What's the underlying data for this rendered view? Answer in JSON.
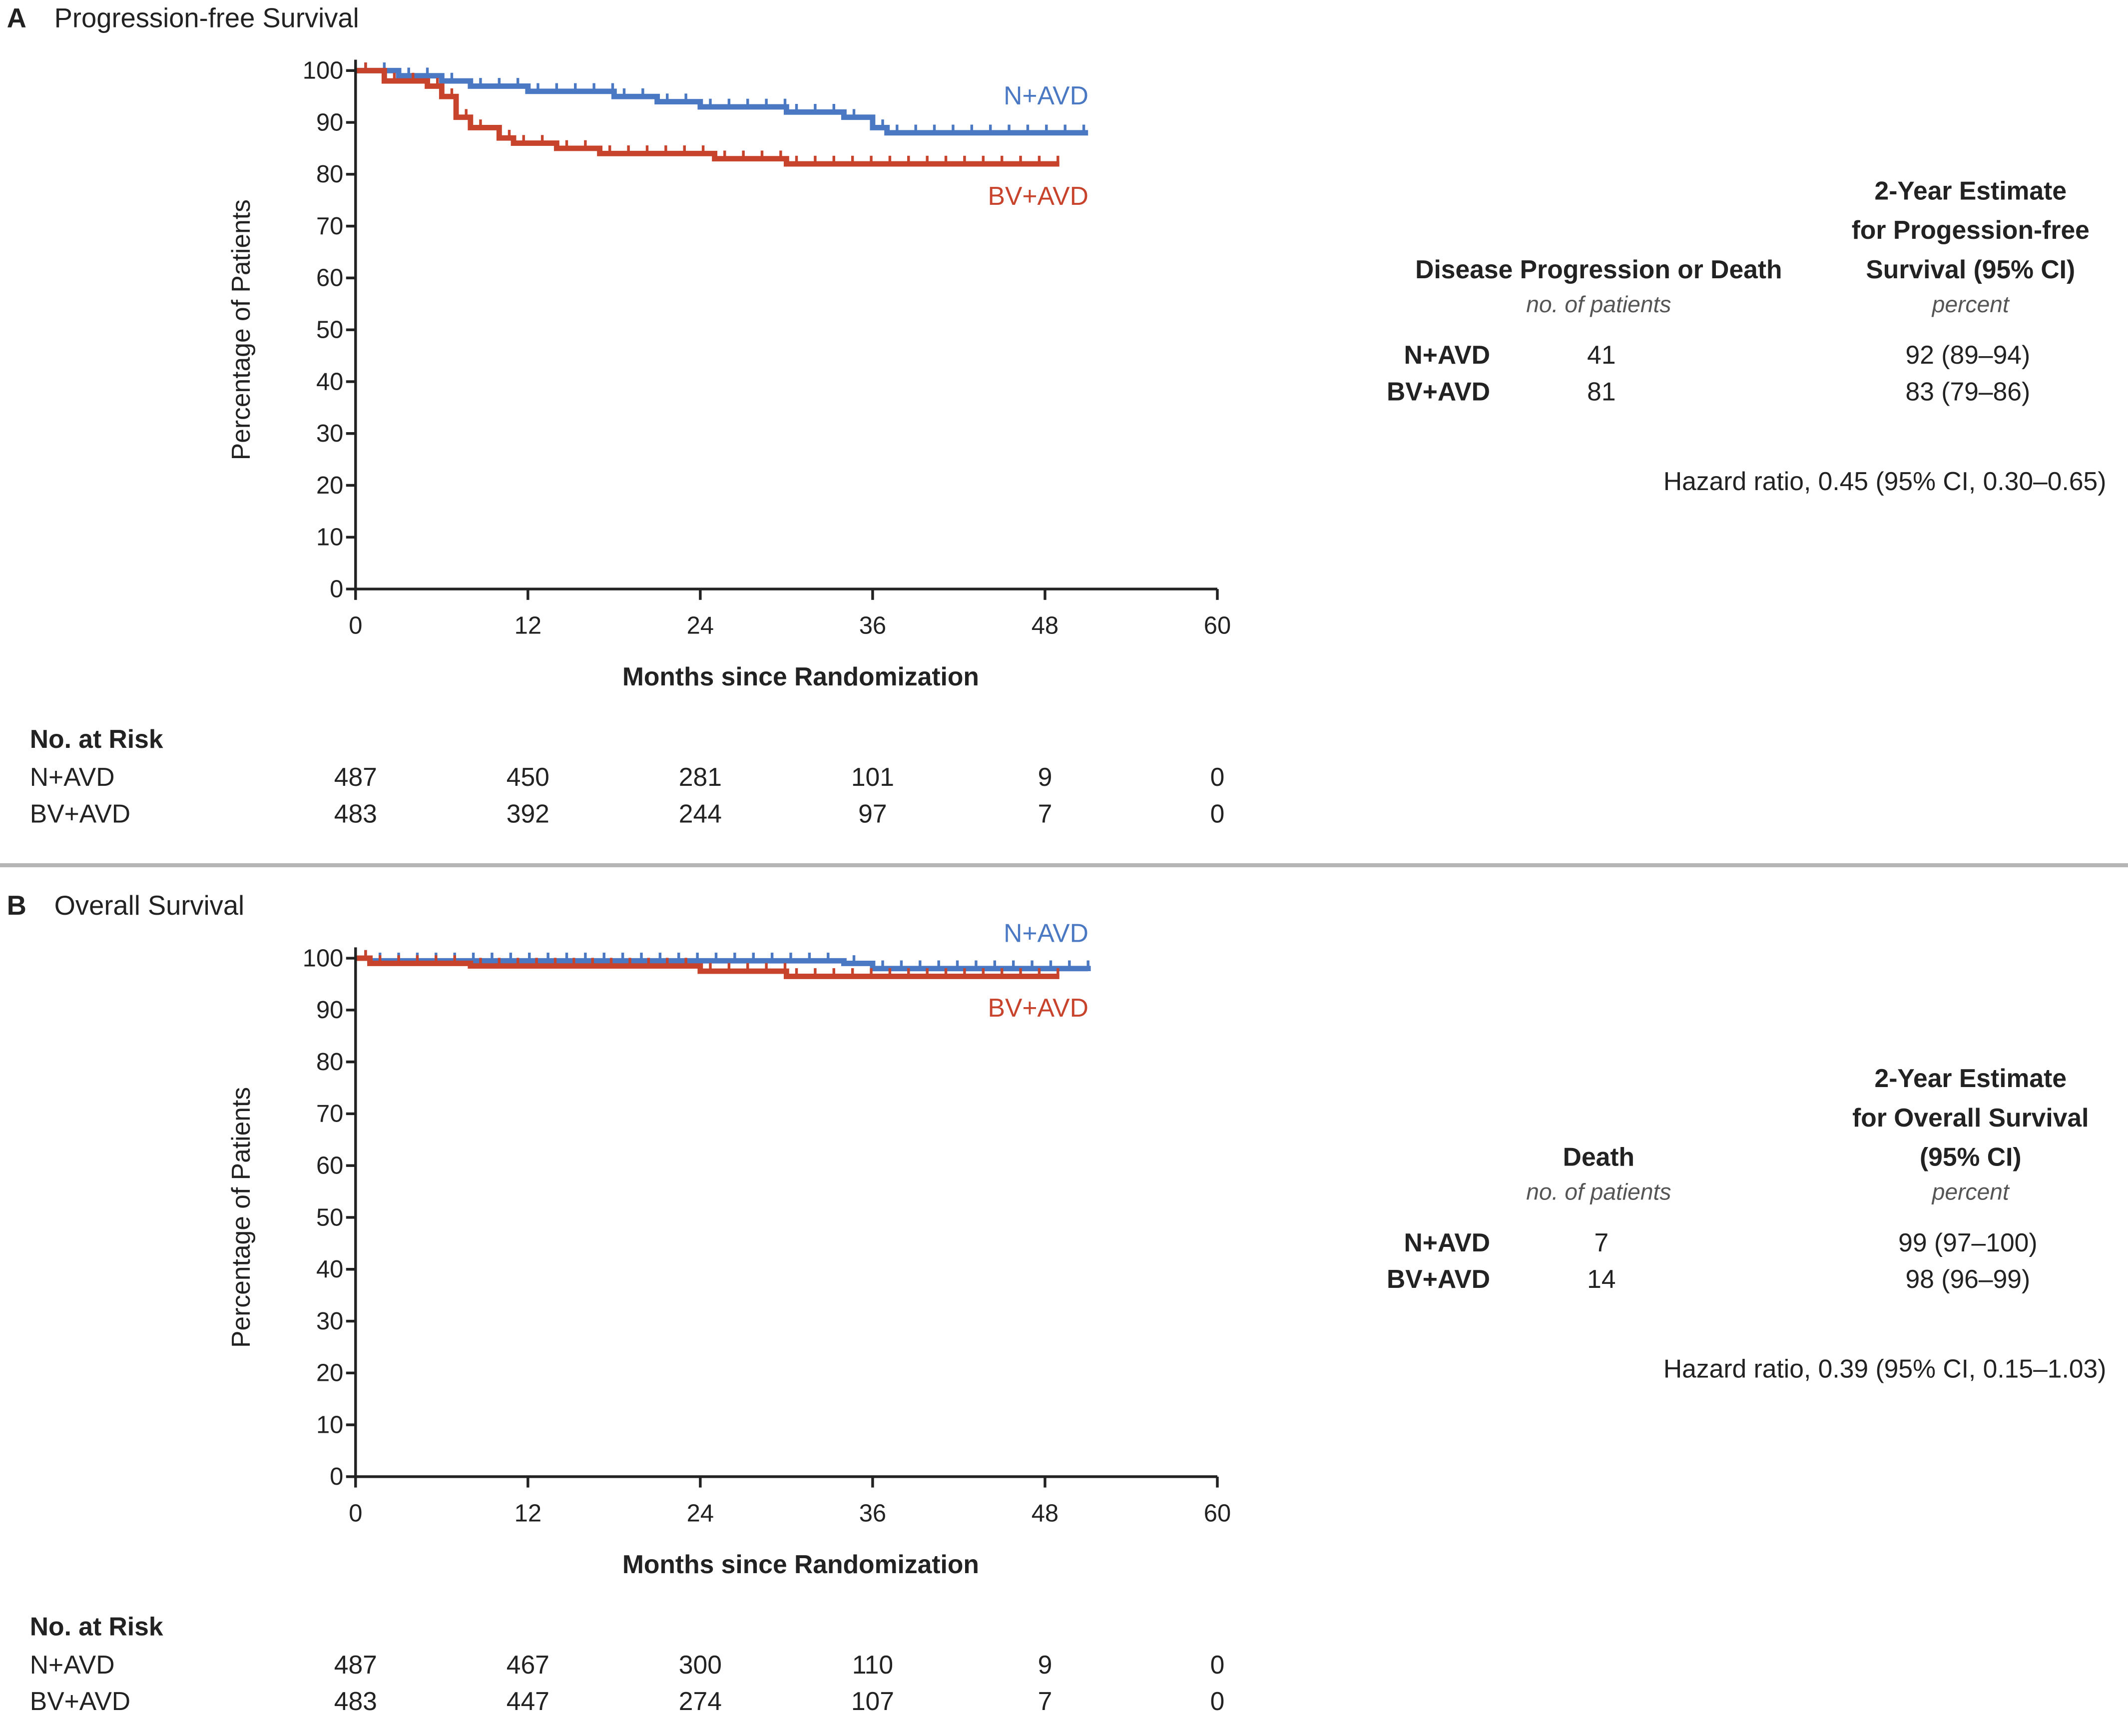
{
  "colors": {
    "N+AVD": "#4a78c2",
    "BV+AVD": "#c8432b",
    "axis": "#222222",
    "separator": "#b5b5b5"
  },
  "chart_data": [
    {
      "type": "line",
      "panel_letter": "A",
      "title": "Progression-free Survival",
      "xlabel": "Months since Randomization",
      "ylabel": "Percentage of Patients",
      "xlim": [
        0,
        60
      ],
      "ylim": [
        0,
        100
      ],
      "xticks": [
        0,
        12,
        24,
        36,
        48,
        60
      ],
      "yticks": [
        0,
        10,
        20,
        30,
        40,
        50,
        60,
        70,
        80,
        90,
        100
      ],
      "grid": false,
      "series": [
        {
          "name": "N+AVD",
          "x": [
            0,
            3,
            6,
            8,
            12,
            18,
            21,
            24,
            30,
            34,
            36,
            37,
            51
          ],
          "y": [
            100,
            99,
            98,
            97,
            96,
            95,
            94,
            93,
            92,
            91,
            89,
            88,
            88
          ]
        },
        {
          "name": "BV+AVD",
          "x": [
            0,
            2,
            5,
            6,
            7,
            8,
            10,
            11,
            14,
            17,
            25,
            30,
            49
          ],
          "y": [
            100,
            98,
            97,
            95,
            91,
            89,
            87,
            86,
            85,
            84,
            83,
            82,
            82
          ]
        }
      ],
      "at_risk": {
        "heading": "No. at Risk",
        "rows": [
          {
            "label": "N+AVD",
            "values": [
              "487",
              "450",
              "281",
              "101",
              "9",
              "0"
            ]
          },
          {
            "label": "BV+AVD",
            "values": [
              "483",
              "392",
              "244",
              "97",
              "7",
              "0"
            ]
          }
        ]
      },
      "table": {
        "col1_header": [
          "Disease Progression or Death"
        ],
        "col1_unit": "no. of patients",
        "col2_header": [
          "2-Year Estimate",
          "for Progession-free",
          "Survival (95% CI)"
        ],
        "col2_unit": "percent",
        "rows": [
          {
            "label": "N+AVD",
            "events": "41",
            "estimate": "92 (89–94)"
          },
          {
            "label": "BV+AVD",
            "events": "81",
            "estimate": "83 (79–86)"
          }
        ],
        "hazard_ratio": "Hazard ratio, 0.45 (95% CI, 0.30–0.65)"
      }
    },
    {
      "type": "line",
      "panel_letter": "B",
      "title": "Overall Survival",
      "xlabel": "Months since Randomization",
      "ylabel": "Percentage of Patients",
      "xlim": [
        0,
        60
      ],
      "ylim": [
        0,
        100
      ],
      "xticks": [
        0,
        12,
        24,
        36,
        48,
        60
      ],
      "yticks": [
        0,
        10,
        20,
        30,
        40,
        50,
        60,
        70,
        80,
        90,
        100
      ],
      "grid": false,
      "series": [
        {
          "name": "N+AVD",
          "x": [
            0,
            1,
            34,
            36,
            51
          ],
          "y": [
            100,
            99.5,
            99,
            98,
            97.5
          ]
        },
        {
          "name": "BV+AVD",
          "x": [
            0,
            1,
            8,
            24,
            30,
            49
          ],
          "y": [
            100,
            99,
            98.5,
            97.5,
            96.5,
            96.5
          ]
        }
      ],
      "at_risk": {
        "heading": "No. at Risk",
        "rows": [
          {
            "label": "N+AVD",
            "values": [
              "487",
              "467",
              "300",
              "110",
              "9",
              "0"
            ]
          },
          {
            "label": "BV+AVD",
            "values": [
              "483",
              "447",
              "274",
              "107",
              "7",
              "0"
            ]
          }
        ]
      },
      "table": {
        "col1_header": [
          "Death"
        ],
        "col1_unit": "no. of patients",
        "col2_header": [
          "2-Year Estimate",
          "for Overall Survival",
          "(95% CI)"
        ],
        "col2_unit": "percent",
        "rows": [
          {
            "label": "N+AVD",
            "events": "7",
            "estimate": "99 (97–100)"
          },
          {
            "label": "BV+AVD",
            "events": "14",
            "estimate": "98 (96–99)"
          }
        ],
        "hazard_ratio": "Hazard ratio, 0.39 (95% CI, 0.15–1.03)"
      }
    }
  ]
}
